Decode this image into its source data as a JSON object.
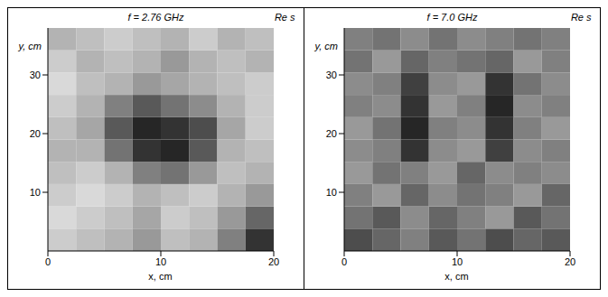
{
  "chart_data": [
    {
      "type": "heatmap",
      "title": "f = 2.76 GHz",
      "zlabel": "Re s",
      "xlabel": "x, cm",
      "ylabel": "y, cm",
      "xlim": [
        0,
        20
      ],
      "ylim": [
        0,
        38
      ],
      "xticks": [
        0,
        10,
        20
      ],
      "yticks": [
        10,
        20,
        30
      ],
      "x": [
        1.25,
        3.75,
        6.25,
        8.75,
        11.25,
        13.75,
        16.25,
        18.75
      ],
      "y": [
        1.9,
        5.7,
        9.5,
        13.3,
        17.1,
        20.9,
        24.7,
        28.5,
        32.3,
        36.1
      ],
      "z": [
        [
          0.8,
          0.75,
          0.7,
          0.6,
          0.75,
          0.7,
          0.5,
          0.2
        ],
        [
          0.85,
          0.8,
          0.75,
          0.65,
          0.8,
          0.75,
          0.6,
          0.4
        ],
        [
          0.8,
          0.85,
          0.8,
          0.7,
          0.75,
          0.8,
          0.7,
          0.6
        ],
        [
          0.75,
          0.8,
          0.7,
          0.5,
          0.45,
          0.6,
          0.75,
          0.7
        ],
        [
          0.7,
          0.7,
          0.45,
          0.2,
          0.15,
          0.35,
          0.7,
          0.75
        ],
        [
          0.75,
          0.65,
          0.35,
          0.15,
          0.2,
          0.3,
          0.65,
          0.8
        ],
        [
          0.8,
          0.7,
          0.5,
          0.35,
          0.45,
          0.55,
          0.7,
          0.8
        ],
        [
          0.85,
          0.75,
          0.7,
          0.6,
          0.65,
          0.7,
          0.75,
          0.8
        ],
        [
          0.8,
          0.7,
          0.75,
          0.7,
          0.6,
          0.7,
          0.75,
          0.7
        ],
        [
          0.7,
          0.75,
          0.8,
          0.75,
          0.7,
          0.8,
          0.7,
          0.75
        ]
      ]
    },
    {
      "type": "heatmap",
      "title": "f = 7.0 GHz",
      "zlabel": "Re s",
      "xlabel": "x, cm",
      "ylabel": "y, cm",
      "xlim": [
        0,
        20
      ],
      "ylim": [
        0,
        38
      ],
      "xticks": [
        0,
        10,
        20
      ],
      "yticks": [
        10,
        20,
        30
      ],
      "x": [
        1.25,
        3.75,
        6.25,
        8.75,
        11.25,
        13.75,
        16.25,
        18.75
      ],
      "y": [
        1.9,
        5.7,
        9.5,
        13.3,
        17.1,
        20.9,
        24.7,
        28.5,
        32.3,
        36.1
      ],
      "z": [
        [
          0.3,
          0.4,
          0.5,
          0.35,
          0.45,
          0.3,
          0.4,
          0.35
        ],
        [
          0.45,
          0.35,
          0.55,
          0.4,
          0.5,
          0.6,
          0.35,
          0.45
        ],
        [
          0.5,
          0.6,
          0.4,
          0.55,
          0.45,
          0.5,
          0.6,
          0.4
        ],
        [
          0.6,
          0.45,
          0.5,
          0.6,
          0.4,
          0.55,
          0.5,
          0.55
        ],
        [
          0.55,
          0.5,
          0.2,
          0.55,
          0.6,
          0.25,
          0.55,
          0.5
        ],
        [
          0.6,
          0.45,
          0.15,
          0.5,
          0.55,
          0.2,
          0.5,
          0.6
        ],
        [
          0.5,
          0.55,
          0.2,
          0.6,
          0.5,
          0.15,
          0.55,
          0.5
        ],
        [
          0.55,
          0.5,
          0.25,
          0.55,
          0.6,
          0.2,
          0.45,
          0.55
        ],
        [
          0.45,
          0.6,
          0.4,
          0.5,
          0.45,
          0.4,
          0.6,
          0.5
        ],
        [
          0.5,
          0.45,
          0.55,
          0.45,
          0.55,
          0.5,
          0.45,
          0.5
        ]
      ]
    }
  ]
}
